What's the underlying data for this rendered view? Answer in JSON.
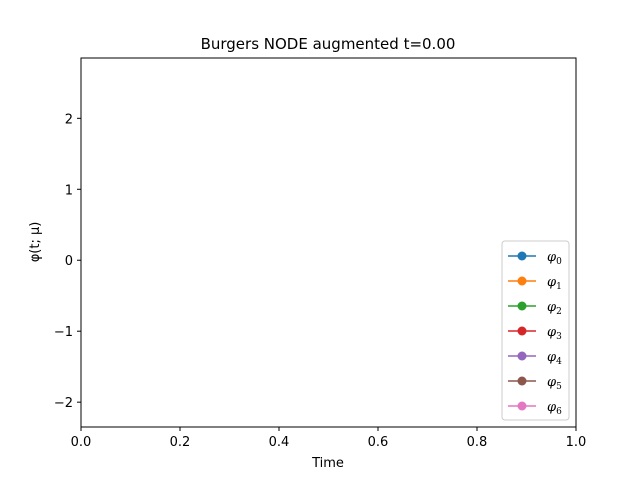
{
  "chart_data": {
    "type": "line",
    "title": "Burgers NODE augmented t=0.00",
    "xlabel": "Time",
    "ylabel": "φ(t; μ)",
    "xlim": [
      0.0,
      1.0
    ],
    "ylim": [
      -2.35,
      2.85
    ],
    "x_ticks": [
      {
        "value": 0.0,
        "label": "0.0"
      },
      {
        "value": 0.2,
        "label": "0.2"
      },
      {
        "value": 0.4,
        "label": "0.4"
      },
      {
        "value": 0.6,
        "label": "0.6"
      },
      {
        "value": 0.8,
        "label": "0.8"
      },
      {
        "value": 1.0,
        "label": "1.0"
      }
    ],
    "y_ticks": [
      {
        "value": 2,
        "label": "2"
      },
      {
        "value": 1,
        "label": "1"
      },
      {
        "value": 0,
        "label": "0"
      },
      {
        "value": -1,
        "label": "−1"
      },
      {
        "value": -2,
        "label": "−2"
      }
    ],
    "grid": false,
    "legend_position": "lower-right",
    "series": [
      {
        "name": "φ0",
        "base": "φ",
        "sub": "0",
        "color": "#1f77b4",
        "values": []
      },
      {
        "name": "φ1",
        "base": "φ",
        "sub": "1",
        "color": "#ff7f0e",
        "values": []
      },
      {
        "name": "φ2",
        "base": "φ",
        "sub": "2",
        "color": "#2ca02c",
        "values": []
      },
      {
        "name": "φ3",
        "base": "φ",
        "sub": "3",
        "color": "#d62728",
        "values": []
      },
      {
        "name": "φ4",
        "base": "φ",
        "sub": "4",
        "color": "#9467bd",
        "values": []
      },
      {
        "name": "φ5",
        "base": "φ",
        "sub": "5",
        "color": "#8c564b",
        "values": []
      },
      {
        "name": "φ6",
        "base": "φ",
        "sub": "6",
        "color": "#e377c2",
        "values": []
      }
    ]
  }
}
